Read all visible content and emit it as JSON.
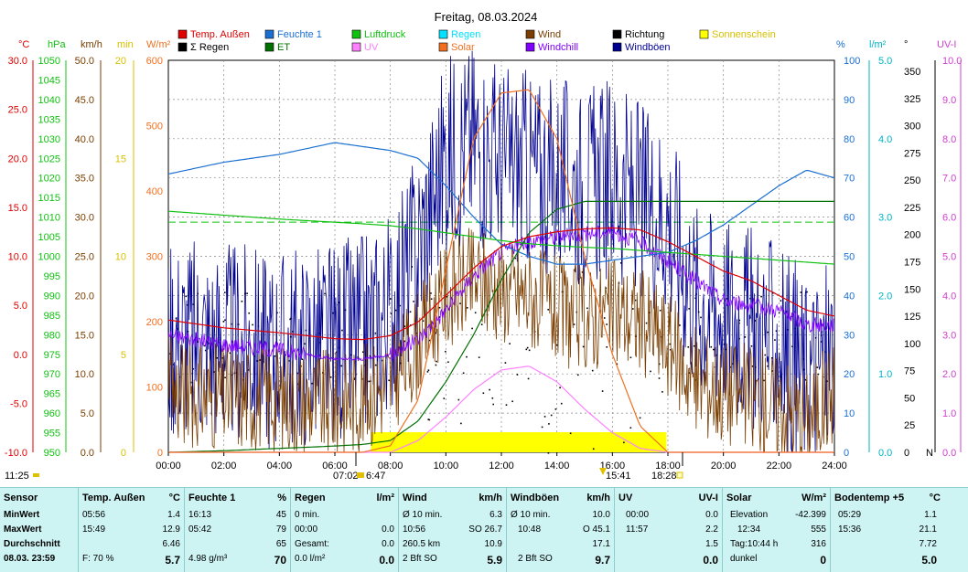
{
  "title": "Freitag, 08.03.2024",
  "colors": {
    "temp": "#e00000",
    "feuchte": "#1a6fd1",
    "luftdruck": "#10c010",
    "regen": "#00b4c8",
    "wind": "#7a3e00",
    "richtung": "#000000",
    "sonnenschein": "#ffff00",
    "t_regen": "#d8c000",
    "et": "#007000",
    "uv": "#ff80ff",
    "solar": "#f07020",
    "windchill": "#8000ff",
    "windboeen": "#000090"
  },
  "legend": [
    {
      "label": "Temp. Außen",
      "color": "#e00000"
    },
    {
      "label": "Feuchte 1",
      "color": "#1a6fd1"
    },
    {
      "label": "Luftdruck",
      "color": "#10c010"
    },
    {
      "label": "Regen",
      "color": "#00e0ff"
    },
    {
      "label": "Wind",
      "color": "#7a3e00"
    },
    {
      "label": "Richtung",
      "color": "#000000"
    },
    {
      "label": "Sonnenschein",
      "color": "#ffff00"
    },
    {
      "label": "Σ Regen",
      "color": "#000000"
    },
    {
      "label": "ET",
      "color": "#007000"
    },
    {
      "label": "UV",
      "color": "#ff80ff"
    },
    {
      "label": "Solar",
      "color": "#f07020"
    },
    {
      "label": "Windchill",
      "color": "#8000ff"
    },
    {
      "label": "Windböen",
      "color": "#000090"
    }
  ],
  "axes": [
    {
      "unit": "°C",
      "color": "#e00000",
      "ticks": [
        "30.0",
        "25.0",
        "20.0",
        "15.0",
        "10.0",
        "5.0",
        "0.0",
        "-5.0",
        "-10.0"
      ]
    },
    {
      "unit": "hPa",
      "color": "#10c010",
      "ticks": [
        "1050",
        "1045",
        "1040",
        "1035",
        "1030",
        "1025",
        "1020",
        "1015",
        "1010",
        "1005",
        "1000",
        "995",
        "990",
        "985",
        "980",
        "975",
        "970",
        "965",
        "960",
        "955",
        "950"
      ]
    },
    {
      "unit": "km/h",
      "color": "#7a3e00",
      "ticks": [
        "50.0",
        "45.0",
        "40.0",
        "35.0",
        "30.0",
        "25.0",
        "20.0",
        "15.0",
        "10.0",
        "5.0",
        "0.0"
      ]
    },
    {
      "unit": "min",
      "color": "#d8c000",
      "ticks": [
        "20",
        "15",
        "10",
        "5",
        "0"
      ]
    },
    {
      "unit": "W/m²",
      "color": "#f07020",
      "ticks": [
        "600",
        "500",
        "400",
        "300",
        "200",
        "100",
        "0"
      ]
    },
    {
      "unit": "%",
      "color": "#1a6fd1",
      "ticks": [
        "100",
        "90",
        "80",
        "70",
        "60",
        "50",
        "40",
        "30",
        "20",
        "10",
        "0"
      ]
    },
    {
      "unit": "l/m²",
      "color": "#00b4c8",
      "ticks": [
        "5.0",
        "4.0",
        "3.0",
        "2.0",
        "1.0",
        "0.0"
      ]
    },
    {
      "unit": "°",
      "color": "#000000",
      "ticks": [
        "350",
        "325",
        "300",
        "275",
        "250",
        "225",
        "200",
        "175",
        "150",
        "125",
        "100",
        "75",
        "50",
        "25",
        "0"
      ],
      "bottom": "N"
    },
    {
      "unit": "UV-I",
      "color": "#d040d0",
      "ticks": [
        "10.0",
        "9.0",
        "8.0",
        "7.0",
        "6.0",
        "5.0",
        "4.0",
        "3.0",
        "2.0",
        "1.0",
        "0.0"
      ]
    }
  ],
  "x_ticks": [
    "00:00",
    "02:00",
    "04:00",
    "06:00",
    "08:00",
    "10:00",
    "12:00",
    "14:00",
    "16:00",
    "18:00",
    "20:00",
    "22:00",
    "24:00"
  ],
  "markers": {
    "time_left": "11:25",
    "sunrise": "07:02",
    "sunrise2": "6:47",
    "sunset": "18:28",
    "solar_noon": "15:41"
  },
  "chart_data": {
    "type": "line",
    "title": "Freitag, 08.03.2024",
    "x": [
      "00:00",
      "02:00",
      "04:00",
      "06:00",
      "07:00",
      "08:00",
      "09:00",
      "10:00",
      "11:00",
      "12:00",
      "13:00",
      "14:00",
      "15:00",
      "16:00",
      "17:00",
      "18:00",
      "19:00",
      "20:00",
      "21:00",
      "22:00",
      "23:00",
      "24:00"
    ],
    "series": [
      {
        "name": "Temp. Außen",
        "unit": "°C",
        "values": [
          3.5,
          2.7,
          2.2,
          1.6,
          1.5,
          1.9,
          3.3,
          6.0,
          8.8,
          11.0,
          12.0,
          12.5,
          12.8,
          12.9,
          12.7,
          11.5,
          10.0,
          8.5,
          7.5,
          6.0,
          4.5,
          3.9
        ]
      },
      {
        "name": "Feuchte 1",
        "unit": "%",
        "values": [
          71,
          74,
          76,
          79,
          78,
          77,
          75,
          68,
          60,
          53,
          50,
          48,
          48,
          49,
          50,
          51,
          54,
          58,
          63,
          68,
          72,
          70
        ]
      },
      {
        "name": "Luftdruck",
        "unit": "hPa",
        "values": [
          1011.5,
          1010.5,
          1009.5,
          1008.7,
          1008.3,
          1007.8,
          1007.0,
          1006.0,
          1005.0,
          1004.0,
          1003.2,
          1002.7,
          1002.3,
          1002.0,
          1001.5,
          1001.0,
          1000.5,
          1000.0,
          999.5,
          999.0,
          998.5,
          998.0
        ]
      },
      {
        "name": "Windböen",
        "unit": "km/h",
        "values": [
          15,
          14,
          13,
          14,
          15,
          18,
          26,
          38,
          40,
          37,
          36,
          35,
          34,
          35,
          32,
          30,
          20,
          18,
          16,
          14,
          10,
          13
        ]
      },
      {
        "name": "Wind",
        "unit": "km/h",
        "values": [
          8,
          7,
          7,
          6,
          7,
          9,
          14,
          20,
          22,
          21,
          20,
          18,
          17,
          18,
          17,
          14,
          9,
          8,
          7,
          6,
          4,
          8
        ]
      },
      {
        "name": "Windchill",
        "unit": "°C",
        "values": [
          2.0,
          1.0,
          0.5,
          -0.5,
          -0.5,
          0.0,
          1.5,
          4.5,
          8.0,
          10.5,
          11.5,
          12.0,
          12.3,
          12.5,
          11.5,
          9.5,
          7.5,
          5.5,
          5.0,
          4.5,
          3.0,
          3.0
        ]
      },
      {
        "name": "Solar",
        "unit": "W/m²",
        "values": [
          0,
          0,
          0,
          0,
          0,
          10,
          80,
          280,
          480,
          550,
          555,
          480,
          300,
          150,
          40,
          0,
          0,
          0,
          0,
          0,
          0,
          0
        ]
      },
      {
        "name": "UV",
        "unit": "UV-I",
        "values": [
          0,
          0,
          0,
          0,
          0,
          0,
          0.3,
          0.9,
          1.6,
          2.1,
          2.2,
          1.8,
          1.1,
          0.5,
          0.1,
          0,
          0,
          0,
          0,
          0,
          0,
          0
        ]
      },
      {
        "name": "ET",
        "unit": "l/m²",
        "values": [
          0,
          0.02,
          0.05,
          0.08,
          0.1,
          0.15,
          0.4,
          0.9,
          1.5,
          2.2,
          2.8,
          3.1,
          3.2,
          3.2,
          3.2,
          3.2,
          3.2,
          3.2,
          3.2,
          3.2,
          3.2,
          3.2
        ]
      }
    ]
  },
  "stats": {
    "row_labels": {
      "sensor": "Sensor",
      "min": "MinWert",
      "max": "MaxWert",
      "avg": "Durchschnitt",
      "date": "08.03. 23:59"
    },
    "temp": {
      "title": "Temp. Außen",
      "unit": "°C",
      "min_time": "05:56",
      "min_val": "1.4",
      "max_time": "15:49",
      "max_val": "12.9",
      "avg_val": "6.46",
      "foot_label": "F: 70 %",
      "foot_val": "5.7"
    },
    "feuchte": {
      "title": "Feuchte 1",
      "unit": "%",
      "min_time": "16:13",
      "min_val": "45",
      "max_time": "05:42",
      "max_val": "79",
      "avg_val": "65",
      "foot_label": "4.98 g/m³",
      "foot_val": "70"
    },
    "regen": {
      "title": "Regen",
      "unit": "l/m²",
      "r1_label": "0 min.",
      "r2_label": "00:00",
      "r2_val": "0.0",
      "r3_label": "Gesamt:",
      "r3_val": "0.0",
      "foot_label": "0.0 l/m²",
      "foot_val": "0.0"
    },
    "wind": {
      "title": "Wind",
      "unit": "km/h",
      "r1_label": "Ø 10 min.",
      "r1_val": "6.3",
      "r2_label": "10:56",
      "r2_val": "SO 26.7",
      "r3_label": "260.5 km",
      "r3_val": "10.9",
      "foot_label": "2 Bft SO",
      "foot_val": "5.9"
    },
    "boeen": {
      "title": "Windböen",
      "unit": "km/h",
      "r1_label": "Ø 10 min.",
      "r1_val": "10.0",
      "r2_label": "10:48",
      "r2_val": "O 45.1",
      "r3_val": "17.1",
      "foot_label": "2 Bft SO",
      "foot_val": "9.7"
    },
    "uv": {
      "title": "UV",
      "unit": "UV-I",
      "r1_label": "00:00",
      "r1_val": "0.0",
      "r2_label": "11:57",
      "r2_val": "2.2",
      "r3_val": "1.5",
      "foot_val": "0.0"
    },
    "solar": {
      "title": "Solar",
      "unit": "W/m²",
      "r1_label": "Elevation",
      "r1_val": "-42.399",
      "r2_label": "12:34",
      "r2_val": "555",
      "r3_label": "Tag:10:44 h",
      "r3_val": "316",
      "foot_label": "dunkel",
      "foot_val": "0"
    },
    "boden": {
      "title": "Bodentemp +5",
      "unit": "°C",
      "min_time": "05:29",
      "min_val": "1.1",
      "max_time": "15:36",
      "max_val": "21.1",
      "avg_val": "7.72",
      "foot_val": "5.0"
    }
  }
}
